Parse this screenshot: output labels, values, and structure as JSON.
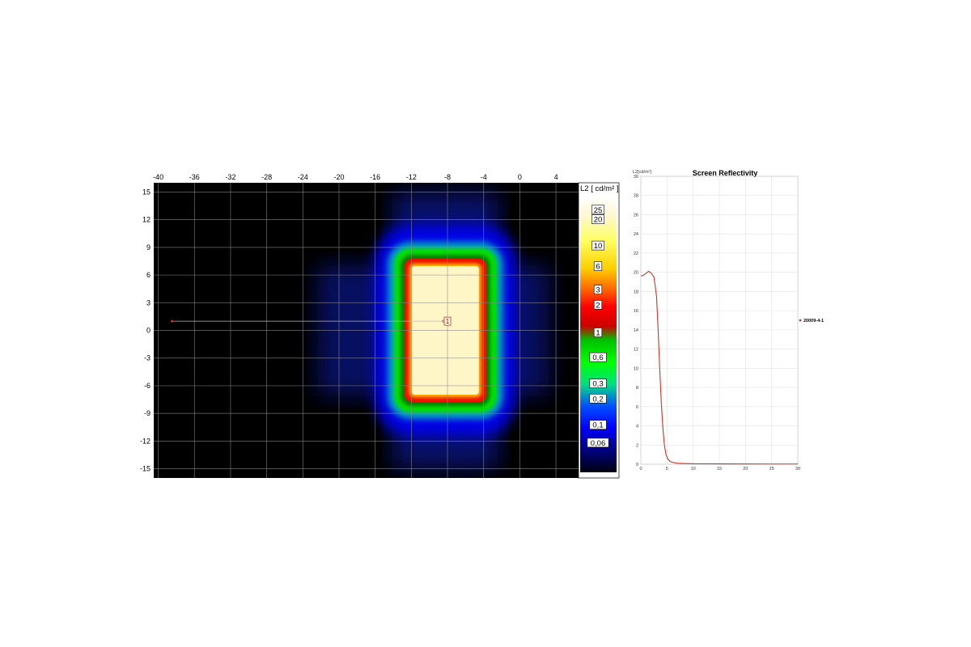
{
  "chart_data": [
    {
      "type": "heatmap",
      "title": "",
      "x_ticks": [
        -40,
        -36,
        -32,
        -28,
        -24,
        -20,
        -16,
        -12,
        -8,
        -4,
        0,
        4
      ],
      "y_ticks": [
        15,
        12,
        9,
        6,
        3,
        0,
        -3,
        -6,
        -9,
        -12,
        -15
      ],
      "xlim": [
        -40.5,
        6.5
      ],
      "ylim": [
        -16,
        16
      ],
      "colorbar": {
        "label": "L2 [ cd/m² ]",
        "levels": [
          "25",
          "20",
          "10",
          "6",
          "3",
          "2",
          "1",
          "0,6",
          "0,3",
          "0,2",
          "0,1",
          "0,06"
        ]
      },
      "bright_region": {
        "x": [
          -12.5,
          -4
        ],
        "y": [
          -7.5,
          7.5
        ],
        "value": "25"
      },
      "marker": {
        "label": "1",
        "x": -8,
        "y": 1
      },
      "profile_line": {
        "x": [
          -38.5,
          -8
        ],
        "y": 1
      }
    },
    {
      "type": "line",
      "title": "Screen Reflectivity",
      "ylabel": "L2[cd/m²]",
      "xlabel": "",
      "xlim": [
        0,
        30
      ],
      "ylim": [
        0,
        30
      ],
      "x_ticks": [
        0,
        5,
        10,
        15,
        20,
        25,
        30
      ],
      "y_ticks": [
        0,
        2,
        4,
        6,
        8,
        10,
        12,
        14,
        16,
        18,
        20,
        22,
        24,
        26,
        28,
        30
      ],
      "grid": true,
      "legend": "right",
      "series": [
        {
          "name": "20009-4-1",
          "color": "#c0392b",
          "x": [
            0,
            0.5,
            1,
            1.5,
            2,
            2.5,
            3,
            3.3,
            3.6,
            3.9,
            4.2,
            4.5,
            4.8,
            5.2,
            5.6,
            6,
            7,
            8,
            10,
            15,
            20,
            25,
            30
          ],
          "y": [
            19.6,
            19.7,
            19.9,
            20.1,
            19.9,
            19.5,
            17.5,
            14,
            10,
            6.5,
            3.8,
            2.0,
            1.0,
            0.5,
            0.3,
            0.2,
            0.1,
            0.08,
            0.05,
            0.04,
            0.03,
            0.02,
            0.02
          ]
        }
      ]
    }
  ]
}
